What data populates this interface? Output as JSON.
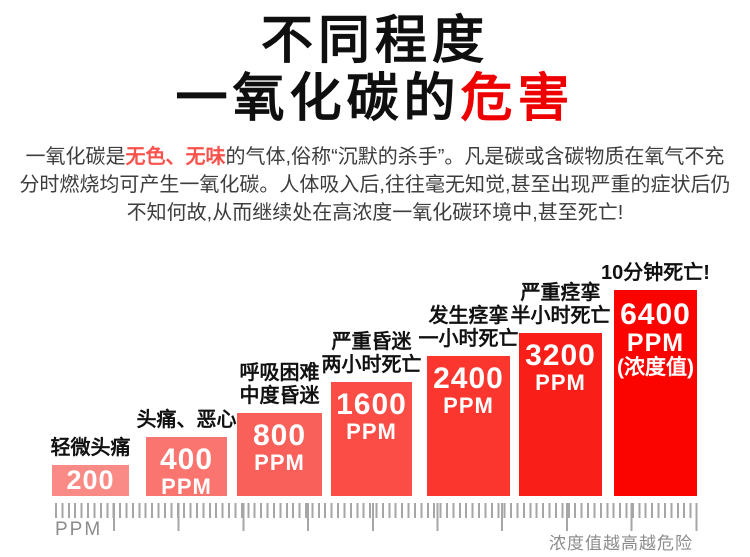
{
  "title": {
    "line1": "不同程度",
    "line2_prefix": "一氧化碳的",
    "line2_highlight": "危害",
    "highlight_color": "#ee0000"
  },
  "intro": {
    "part1": "一氧化碳是",
    "highlight": "无色、无味",
    "highlight_color": "#f9524c",
    "part2": "的气体,俗称“沉默的杀手”。凡是碳或含碳物质在氧气不充分时燃烧均可产生一氧化碳。人体吸入后,往往毫无知觉,甚至出现严重的症状后仍不知何故,从而继续处在高浓度一氧化碳环境中,甚至死亡!"
  },
  "chart_data": {
    "type": "bar",
    "title": "不同程度一氧化碳的危害",
    "unit": "PPM",
    "categories": [
      "轻微头痛",
      "头痛、恶心",
      "呼吸困难 中度昏迷",
      "严重昏迷 两小时死亡",
      "发生痉挛 一小时死亡",
      "严重痉挛 半小时死亡",
      "10分钟死亡!"
    ],
    "values": [
      200,
      400,
      800,
      1600,
      2400,
      3200,
      6400
    ],
    "axis": {
      "left_label": "PPM",
      "right_label": "浓度值越高越危险"
    },
    "bars": [
      {
        "label_lines": [
          "轻微头痛"
        ],
        "value": "200",
        "ppm": 200,
        "color": "#fa8a85"
      },
      {
        "label_lines": [
          "头痛、恶心"
        ],
        "value": "400",
        "unit": "PPM",
        "ppm": 400,
        "color": "#fa756f"
      },
      {
        "label_lines": [
          "呼吸困难",
          "中度昏迷"
        ],
        "value": "800",
        "unit": "PPM",
        "ppm": 800,
        "color": "#fa605a"
      },
      {
        "label_lines": [
          "严重昏迷",
          "两小时死亡"
        ],
        "value": "1600",
        "unit": "PPM",
        "ppm": 1600,
        "color": "#fb4c45"
      },
      {
        "label_lines": [
          "发生痉挛",
          "一小时死亡"
        ],
        "value": "2400",
        "unit": "PPM",
        "ppm": 2400,
        "color": "#fb362f"
      },
      {
        "label_lines": [
          "严重痉挛",
          "半小时死亡"
        ],
        "value": "3200",
        "unit": "PPM",
        "ppm": 3200,
        "color": "#fa1e18"
      },
      {
        "label_lines": [
          "10分钟死亡!"
        ],
        "value": "6400",
        "unit": "PPM",
        "note": "(浓度值)",
        "ppm": 6400,
        "color": "#fb0400"
      }
    ]
  }
}
